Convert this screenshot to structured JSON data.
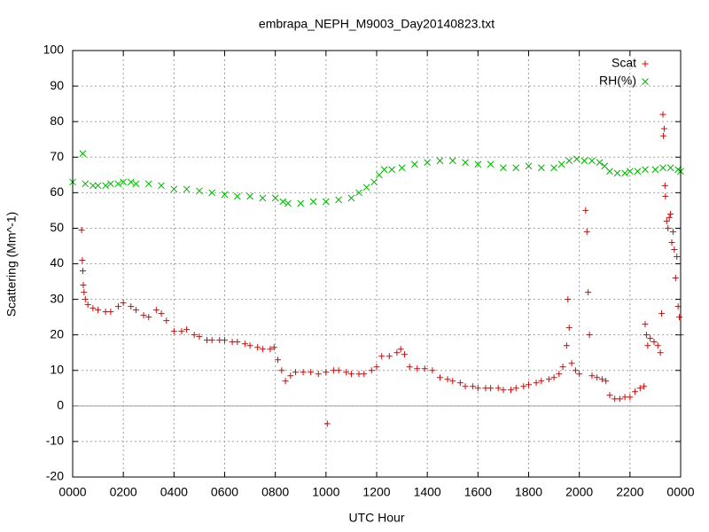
{
  "chart_data": {
    "type": "scatter",
    "title": "embrapa_NEPH_M9003_Day20140823.txt",
    "x_label": "UTC Hour",
    "y_label": "Scattering (Mm^-1)",
    "xlim": [
      0,
      24
    ],
    "xticks": [
      {
        "value": 0,
        "label": "0000"
      },
      {
        "value": 2,
        "label": "0200"
      },
      {
        "value": 4,
        "label": "0400"
      },
      {
        "value": 6,
        "label": "0600"
      },
      {
        "value": 8,
        "label": "0800"
      },
      {
        "value": 10,
        "label": "1000"
      },
      {
        "value": 12,
        "label": "1200"
      },
      {
        "value": 14,
        "label": "1400"
      },
      {
        "value": 16,
        "label": "1600"
      },
      {
        "value": 18,
        "label": "1800"
      },
      {
        "value": 20,
        "label": "2000"
      },
      {
        "value": 22,
        "label": "2200"
      },
      {
        "value": 24,
        "label": "0000"
      }
    ],
    "ylim": [
      -20,
      100
    ],
    "yticks": [
      -20,
      -10,
      0,
      10,
      20,
      30,
      40,
      50,
      60,
      70,
      80,
      90,
      100
    ],
    "grid": true,
    "zero_axis": true,
    "legend": "top-right",
    "series": [
      {
        "name": "Scat",
        "color": "#e00000",
        "marker": "plus",
        "x": [
          0.35,
          0.38,
          0.4,
          0.42,
          0.45,
          0.5,
          0.6,
          0.8,
          1.0,
          1.3,
          1.5,
          1.8,
          2.0,
          2.3,
          2.5,
          2.8,
          3.0,
          3.3,
          3.5,
          3.7,
          4.0,
          4.3,
          4.5,
          4.8,
          5.0,
          5.3,
          5.5,
          5.8,
          6.0,
          6.3,
          6.5,
          6.8,
          7.0,
          7.3,
          7.5,
          7.8,
          7.95,
          8.1,
          8.25,
          8.4,
          8.6,
          8.8,
          9.1,
          9.4,
          9.7,
          10.0,
          10.05,
          10.3,
          10.5,
          10.8,
          11.0,
          11.3,
          11.5,
          11.8,
          12.0,
          12.2,
          12.5,
          12.8,
          12.95,
          13.1,
          13.3,
          13.6,
          13.9,
          14.2,
          14.5,
          14.8,
          15.0,
          15.3,
          15.5,
          15.8,
          16.0,
          16.3,
          16.5,
          16.8,
          17.0,
          17.3,
          17.5,
          17.8,
          18.0,
          18.3,
          18.5,
          18.8,
          19.0,
          19.2,
          19.35,
          19.5,
          19.55,
          19.6,
          19.7,
          19.85,
          20.0,
          20.25,
          20.3,
          20.35,
          20.4,
          20.5,
          20.7,
          20.9,
          21.05,
          21.2,
          21.4,
          21.6,
          21.8,
          22.0,
          22.2,
          22.4,
          22.55,
          22.6,
          22.65,
          22.7,
          22.8,
          22.95,
          23.1,
          23.2,
          23.25,
          23.3,
          23.32,
          23.35,
          23.38,
          23.4,
          23.45,
          23.5,
          23.55,
          23.6,
          23.65,
          23.7,
          23.75,
          23.8,
          23.85,
          23.9,
          23.95,
          24.0
        ],
        "values": [
          49.5,
          41,
          38,
          34,
          32,
          30,
          28.5,
          27.5,
          27,
          26.5,
          26.5,
          28,
          29,
          28,
          27,
          25.5,
          25,
          27,
          26,
          24,
          21,
          21,
          21.5,
          20,
          19.5,
          18.5,
          18.5,
          18.5,
          18.5,
          18,
          18,
          17.5,
          17,
          16.5,
          16,
          16,
          16.5,
          13,
          10,
          7,
          8.5,
          9.5,
          9.5,
          9.5,
          9,
          9.5,
          -5,
          10,
          10,
          9.5,
          9,
          9,
          9,
          10,
          11,
          14,
          14,
          15,
          16,
          14.5,
          11,
          10.5,
          10.5,
          10,
          8,
          7.5,
          7,
          6.5,
          5.5,
          5.5,
          5,
          5,
          5,
          5,
          4.5,
          4.5,
          5,
          5.5,
          6,
          6.5,
          7,
          7.5,
          8,
          9,
          11,
          17,
          30,
          22,
          12,
          10,
          9,
          55,
          49,
          32,
          20,
          8.5,
          8,
          7.5,
          7,
          3,
          2,
          2,
          2.5,
          2.5,
          4,
          5,
          5.5,
          23,
          20,
          17,
          19,
          18,
          17,
          15,
          26,
          82,
          76,
          78,
          62,
          59,
          52,
          50,
          53,
          54,
          46,
          49,
          44,
          36,
          42,
          28,
          25,
          20
        ]
      },
      {
        "name": "RH(%)",
        "color": "#00b000",
        "marker": "cross",
        "x": [
          0.0,
          0.4,
          0.5,
          0.8,
          1.0,
          1.3,
          1.5,
          1.8,
          2.0,
          2.3,
          2.5,
          3.0,
          3.5,
          4.0,
          4.5,
          5.0,
          5.5,
          6.0,
          6.5,
          7.0,
          7.5,
          8.0,
          8.3,
          8.5,
          9.0,
          9.5,
          10.0,
          10.5,
          11.0,
          11.3,
          11.6,
          11.9,
          12.1,
          12.3,
          12.6,
          13.0,
          13.5,
          14.0,
          14.5,
          15.0,
          15.5,
          16.0,
          16.5,
          17.0,
          17.5,
          18.0,
          18.5,
          19.0,
          19.3,
          19.6,
          19.9,
          20.2,
          20.5,
          20.8,
          21.0,
          21.2,
          21.5,
          21.8,
          22.0,
          22.3,
          22.6,
          23.0,
          23.3,
          23.6,
          23.9,
          24.0
        ],
        "values": [
          63,
          71,
          62.5,
          62,
          62,
          62,
          62.5,
          62.5,
          63,
          63,
          62.5,
          62.5,
          62,
          61,
          61,
          60.5,
          60,
          59.5,
          59,
          59,
          58.5,
          58.5,
          57.5,
          57,
          57,
          57.5,
          57.5,
          58,
          58.5,
          60,
          61.5,
          63,
          65,
          66.5,
          66.5,
          67,
          68,
          68.5,
          69,
          69,
          68.5,
          68,
          68,
          67,
          67,
          67.5,
          67,
          67,
          68,
          69,
          69.5,
          69,
          69,
          68.5,
          67.5,
          66,
          65.5,
          65.5,
          66,
          66,
          66.5,
          66.5,
          67,
          67,
          66.5,
          66
        ]
      }
    ]
  }
}
